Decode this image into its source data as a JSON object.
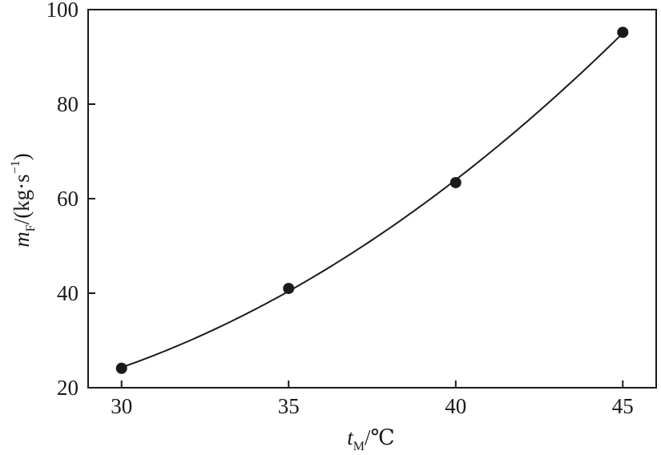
{
  "chart_data": {
    "type": "scatter",
    "title": "",
    "xlabel": {
      "symbol": "t",
      "subscript": "M",
      "unit": "/℃"
    },
    "ylabel": {
      "symbol": "m",
      "subscript": "F",
      "unit_prefix": "/(kg·s",
      "unit_exp": "−1",
      "unit_suffix": ")"
    },
    "xlim": [
      29,
      46
    ],
    "ylim": [
      20,
      100
    ],
    "xticks": [
      30,
      35,
      40,
      45
    ],
    "yticks": [
      20,
      40,
      60,
      80,
      100
    ],
    "grid": false,
    "legend": "none",
    "series": [
      {
        "marker": "filled-circle",
        "color": "#1a1a1a",
        "x": [
          30,
          35,
          40,
          45
        ],
        "y": [
          24.1,
          41.0,
          63.4,
          95.2
        ]
      }
    ],
    "fit_curve": {
      "type": "quadratic",
      "x_range": [
        30,
        45
      ]
    }
  }
}
